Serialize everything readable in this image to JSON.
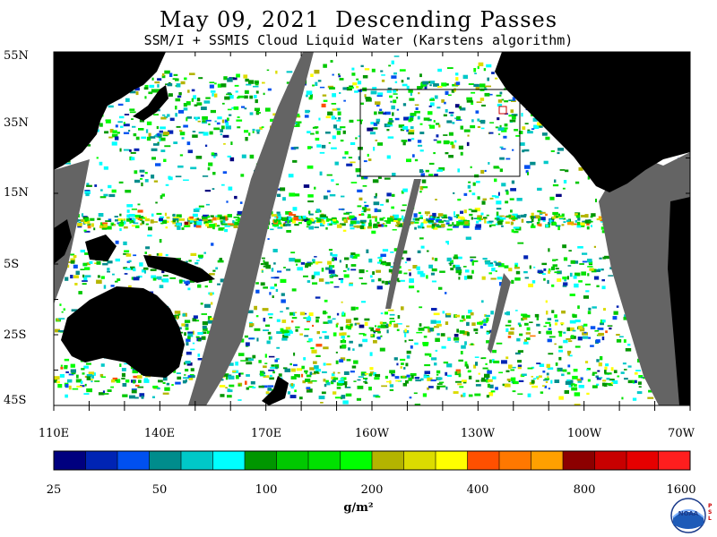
{
  "title": "May 09, 2021  Descending Passes",
  "subtitle": "SSM/I + SSMIS Cloud Liquid Water (Karstens algorithm)",
  "lat_labels": [
    "55N",
    "35N",
    "15N",
    "5S",
    "25S",
    "45S"
  ],
  "lon_labels": [
    "110E",
    "140E",
    "170E",
    "160W",
    "130W",
    "100W",
    "70W"
  ],
  "colorbar": {
    "colors": [
      "#00007f",
      "#0024b4",
      "#0050f0",
      "#008c8c",
      "#00c8c8",
      "#00ffff",
      "#009600",
      "#00c800",
      "#00e100",
      "#00ff00",
      "#b4b400",
      "#dcdc00",
      "#ffff00",
      "#ff5000",
      "#ff7800",
      "#ffa000",
      "#8c0000",
      "#c80000",
      "#e60000",
      "#ff1e1e"
    ],
    "tick_labels": [
      "25",
      "50",
      "100",
      "200",
      "400",
      "800",
      "1600"
    ],
    "units": "g/m²"
  },
  "colors": {
    "land": "#000000",
    "no_data_swath_gap": "#646464",
    "clear_ocean": "#ffffff"
  },
  "logo": {
    "name": "noaa-logo",
    "text": "NOAA",
    "side_text": "P S L"
  }
}
